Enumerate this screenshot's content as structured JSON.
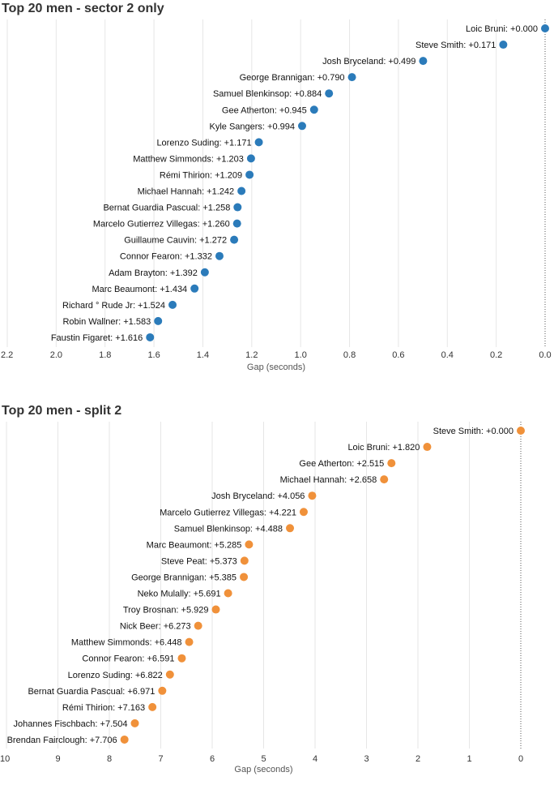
{
  "chart_data": [
    {
      "type": "scatter",
      "title": "Top 20 men - sector 2 only",
      "xlabel": "Gap (seconds)",
      "ylabel": "",
      "xlim": [
        2.2,
        0.0
      ],
      "x_reversed": true,
      "grid": true,
      "color": "#2b7bba",
      "xticks": [
        "2.2",
        "2.0",
        "1.8",
        "1.6",
        "1.4",
        "1.2",
        "1.0",
        "0.8",
        "0.6",
        "0.4",
        "0.2",
        "0.0"
      ],
      "points": [
        {
          "name": "Loic Bruni",
          "value": 0.0,
          "label": "Loic Bruni: +0.000"
        },
        {
          "name": "Steve Smith",
          "value": 0.171,
          "label": "Steve Smith: +0.171"
        },
        {
          "name": "Josh Bryceland",
          "value": 0.499,
          "label": "Josh Bryceland: +0.499"
        },
        {
          "name": "George Brannigan",
          "value": 0.79,
          "label": "George Brannigan: +0.790"
        },
        {
          "name": "Samuel Blenkinsop",
          "value": 0.884,
          "label": "Samuel Blenkinsop: +0.884"
        },
        {
          "name": "Gee Atherton",
          "value": 0.945,
          "label": "Gee Atherton: +0.945"
        },
        {
          "name": "Kyle Sangers",
          "value": 0.994,
          "label": "Kyle Sangers: +0.994"
        },
        {
          "name": "Lorenzo Suding",
          "value": 1.171,
          "label": "Lorenzo Suding: +1.171"
        },
        {
          "name": "Matthew Simmonds",
          "value": 1.203,
          "label": "Matthew Simmonds: +1.203"
        },
        {
          "name": "Rémi Thirion",
          "value": 1.209,
          "label": "Rémi Thirion: +1.209"
        },
        {
          "name": "Michael Hannah",
          "value": 1.242,
          "label": "Michael Hannah: +1.242"
        },
        {
          "name": "Bernat Guardia Pascual",
          "value": 1.258,
          "label": "Bernat Guardia Pascual: +1.258"
        },
        {
          "name": "Marcelo Gutierrez Villegas",
          "value": 1.26,
          "label": "Marcelo Gutierrez Villegas: +1.260"
        },
        {
          "name": "Guillaume Cauvin",
          "value": 1.272,
          "label": "Guillaume Cauvin: +1.272"
        },
        {
          "name": "Connor Fearon",
          "value": 1.332,
          "label": "Connor Fearon: +1.332"
        },
        {
          "name": "Adam Brayton",
          "value": 1.392,
          "label": "Adam Brayton: +1.392"
        },
        {
          "name": "Marc Beaumont",
          "value": 1.434,
          "label": "Marc Beaumont: +1.434"
        },
        {
          "name": "Richard ° Rude Jr",
          "value": 1.524,
          "label": "Richard ° Rude Jr: +1.524"
        },
        {
          "name": "Robin Wallner",
          "value": 1.583,
          "label": "Robin Wallner: +1.583"
        },
        {
          "name": "Faustin Figaret",
          "value": 1.616,
          "label": "Faustin Figaret: +1.616"
        }
      ]
    },
    {
      "type": "scatter",
      "title": "Top 20 men - split 2",
      "xlabel": "Gap (seconds)",
      "ylabel": "",
      "xlim": [
        10,
        0
      ],
      "x_reversed": true,
      "grid": true,
      "color": "#f0913a",
      "xticks": [
        "10",
        "9",
        "8",
        "7",
        "6",
        "5",
        "4",
        "3",
        "2",
        "1",
        "0"
      ],
      "points": [
        {
          "name": "Steve Smith",
          "value": 0.0,
          "label": "Steve Smith: +0.000"
        },
        {
          "name": "Loic Bruni",
          "value": 1.82,
          "label": "Loic Bruni: +1.820"
        },
        {
          "name": "Gee Atherton",
          "value": 2.515,
          "label": "Gee Atherton: +2.515"
        },
        {
          "name": "Michael Hannah",
          "value": 2.658,
          "label": "Michael Hannah: +2.658"
        },
        {
          "name": "Josh Bryceland",
          "value": 4.056,
          "label": "Josh Bryceland: +4.056"
        },
        {
          "name": "Marcelo Gutierrez Villegas",
          "value": 4.221,
          "label": "Marcelo Gutierrez Villegas: +4.221"
        },
        {
          "name": "Samuel Blenkinsop",
          "value": 4.488,
          "label": "Samuel Blenkinsop: +4.488"
        },
        {
          "name": "Marc Beaumont",
          "value": 5.285,
          "label": "Marc Beaumont: +5.285"
        },
        {
          "name": "Steve Peat",
          "value": 5.373,
          "label": "Steve Peat: +5.373"
        },
        {
          "name": "George Brannigan",
          "value": 5.385,
          "label": "George Brannigan: +5.385"
        },
        {
          "name": "Neko Mulally",
          "value": 5.691,
          "label": "Neko Mulally: +5.691"
        },
        {
          "name": "Troy Brosnan",
          "value": 5.929,
          "label": "Troy Brosnan: +5.929"
        },
        {
          "name": "Nick Beer",
          "value": 6.273,
          "label": "Nick Beer: +6.273"
        },
        {
          "name": "Matthew Simmonds",
          "value": 6.448,
          "label": "Matthew Simmonds: +6.448"
        },
        {
          "name": "Connor Fearon",
          "value": 6.591,
          "label": "Connor Fearon: +6.591"
        },
        {
          "name": "Lorenzo Suding",
          "value": 6.822,
          "label": "Lorenzo Suding: +6.822"
        },
        {
          "name": "Bernat Guardia Pascual",
          "value": 6.971,
          "label": "Bernat Guardia Pascual: +6.971"
        },
        {
          "name": "Rémi Thirion",
          "value": 7.163,
          "label": "Rémi Thirion: +7.163"
        },
        {
          "name": "Johannes Fischbach",
          "value": 7.504,
          "label": "Johannes Fischbach: +7.504"
        },
        {
          "name": "Brendan Fairclough",
          "value": 7.706,
          "label": "Brendan Fairclough: +7.706"
        }
      ]
    }
  ]
}
